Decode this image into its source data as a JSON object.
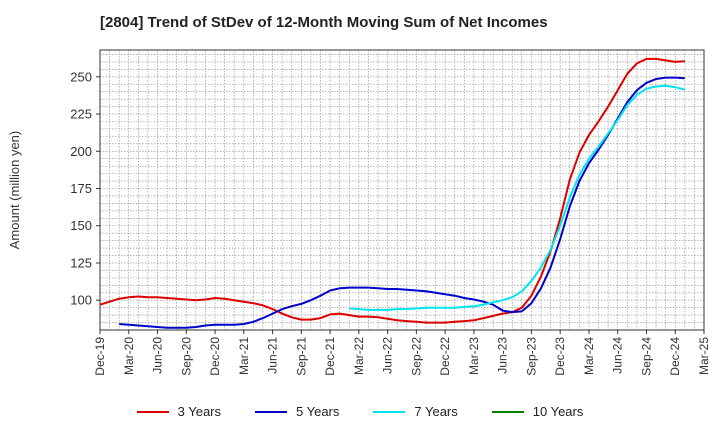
{
  "title": "[2804]  Trend of StDev of 12-Month Moving Sum of Net Incomes",
  "chart_data": {
    "type": "line",
    "title": "[2804]  Trend of StDev of 12-Month Moving Sum of Net Incomes",
    "xlabel": "",
    "ylabel": "Amount (million yen)",
    "x_range": [
      "2019-12",
      "2025-03"
    ],
    "ylim": [
      80,
      268
    ],
    "y_ticks": [
      100,
      125,
      150,
      175,
      200,
      225,
      250
    ],
    "x_ticks": [
      "Dec-19",
      "Mar-20",
      "Jun-20",
      "Sep-20",
      "Dec-20",
      "Mar-21",
      "Jun-21",
      "Sep-21",
      "Dec-21",
      "Mar-22",
      "Jun-22",
      "Sep-22",
      "Dec-22",
      "Mar-23",
      "Jun-23",
      "Sep-23",
      "Dec-23",
      "Mar-24",
      "Jun-24",
      "Sep-24",
      "Dec-24",
      "Mar-25"
    ],
    "grid": true,
    "legend_position": "bottom",
    "series": [
      {
        "name": "3 Years",
        "color": "#dd0000",
        "points": [
          [
            "2019-12",
            97
          ],
          [
            "2020-01",
            99
          ],
          [
            "2020-02",
            101
          ],
          [
            "2020-03",
            102
          ],
          [
            "2020-04",
            102.5
          ],
          [
            "2020-05",
            102
          ],
          [
            "2020-06",
            102
          ],
          [
            "2020-07",
            101.5
          ],
          [
            "2020-08",
            101
          ],
          [
            "2020-09",
            100.5
          ],
          [
            "2020-10",
            100
          ],
          [
            "2020-11",
            100.5
          ],
          [
            "2020-12",
            101.5
          ],
          [
            "2021-01",
            101
          ],
          [
            "2021-02",
            100
          ],
          [
            "2021-03",
            99
          ],
          [
            "2021-04",
            98
          ],
          [
            "2021-05",
            96.5
          ],
          [
            "2021-06",
            94
          ],
          [
            "2021-07",
            91
          ],
          [
            "2021-08",
            88.5
          ],
          [
            "2021-09",
            87
          ],
          [
            "2021-10",
            87
          ],
          [
            "2021-11",
            88
          ],
          [
            "2021-12",
            90.5
          ],
          [
            "2022-01",
            91
          ],
          [
            "2022-02",
            90
          ],
          [
            "2022-03",
            89
          ],
          [
            "2022-04",
            89
          ],
          [
            "2022-05",
            88.5
          ],
          [
            "2022-06",
            87.5
          ],
          [
            "2022-07",
            86.5
          ],
          [
            "2022-08",
            86
          ],
          [
            "2022-09",
            85.5
          ],
          [
            "2022-10",
            85
          ],
          [
            "2022-11",
            85
          ],
          [
            "2022-12",
            85
          ],
          [
            "2023-01",
            85.5
          ],
          [
            "2023-02",
            86
          ],
          [
            "2023-03",
            86.5
          ],
          [
            "2023-04",
            88
          ],
          [
            "2023-05",
            89.5
          ],
          [
            "2023-06",
            91
          ],
          [
            "2023-07",
            92
          ],
          [
            "2023-08",
            95
          ],
          [
            "2023-09",
            103
          ],
          [
            "2023-10",
            116
          ],
          [
            "2023-11",
            133
          ],
          [
            "2023-12",
            155
          ],
          [
            "2024-01",
            181
          ],
          [
            "2024-02",
            199
          ],
          [
            "2024-03",
            211
          ],
          [
            "2024-04",
            220
          ],
          [
            "2024-05",
            230
          ],
          [
            "2024-06",
            241
          ],
          [
            "2024-07",
            252
          ],
          [
            "2024-08",
            259
          ],
          [
            "2024-09",
            262
          ],
          [
            "2024-10",
            262
          ],
          [
            "2024-11",
            261
          ],
          [
            "2024-12",
            260
          ],
          [
            "2025-01",
            260.5
          ]
        ]
      },
      {
        "name": "5 Years",
        "color": "#0000cc",
        "points": [
          [
            "2020-02",
            84
          ],
          [
            "2020-03",
            83.5
          ],
          [
            "2020-04",
            83
          ],
          [
            "2020-05",
            82.5
          ],
          [
            "2020-06",
            82
          ],
          [
            "2020-07",
            81.5
          ],
          [
            "2020-08",
            81.5
          ],
          [
            "2020-09",
            81.5
          ],
          [
            "2020-10",
            82
          ],
          [
            "2020-11",
            83
          ],
          [
            "2020-12",
            83.5
          ],
          [
            "2021-01",
            83.5
          ],
          [
            "2021-02",
            83.5
          ],
          [
            "2021-03",
            84
          ],
          [
            "2021-04",
            85.5
          ],
          [
            "2021-05",
            88
          ],
          [
            "2021-06",
            91
          ],
          [
            "2021-07",
            94
          ],
          [
            "2021-08",
            96
          ],
          [
            "2021-09",
            97.5
          ],
          [
            "2021-10",
            100
          ],
          [
            "2021-11",
            103
          ],
          [
            "2021-12",
            106.5
          ],
          [
            "2022-01",
            108
          ],
          [
            "2022-02",
            108.5
          ],
          [
            "2022-03",
            108.5
          ],
          [
            "2022-04",
            108.5
          ],
          [
            "2022-05",
            108
          ],
          [
            "2022-06",
            107.5
          ],
          [
            "2022-07",
            107.5
          ],
          [
            "2022-08",
            107
          ],
          [
            "2022-09",
            106.5
          ],
          [
            "2022-10",
            106
          ],
          [
            "2022-11",
            105
          ],
          [
            "2022-12",
            104
          ],
          [
            "2023-01",
            103
          ],
          [
            "2023-02",
            101.5
          ],
          [
            "2023-03",
            100.5
          ],
          [
            "2023-04",
            99
          ],
          [
            "2023-05",
            97
          ],
          [
            "2023-06",
            93
          ],
          [
            "2023-07",
            92
          ],
          [
            "2023-08",
            92.5
          ],
          [
            "2023-09",
            98
          ],
          [
            "2023-10",
            108
          ],
          [
            "2023-11",
            122
          ],
          [
            "2023-12",
            141
          ],
          [
            "2024-01",
            163
          ],
          [
            "2024-02",
            180
          ],
          [
            "2024-03",
            192
          ],
          [
            "2024-04",
            201
          ],
          [
            "2024-05",
            211
          ],
          [
            "2024-06",
            222
          ],
          [
            "2024-07",
            233
          ],
          [
            "2024-08",
            241
          ],
          [
            "2024-09",
            246
          ],
          [
            "2024-10",
            248.5
          ],
          [
            "2024-11",
            249.5
          ],
          [
            "2024-12",
            249.5
          ],
          [
            "2025-01",
            249
          ]
        ]
      },
      {
        "name": "7 Years",
        "color": "#00e5ee",
        "points": [
          [
            "2022-02",
            94.5
          ],
          [
            "2022-03",
            94
          ],
          [
            "2022-04",
            93.5
          ],
          [
            "2022-05",
            93.5
          ],
          [
            "2022-06",
            93.5
          ],
          [
            "2022-07",
            94
          ],
          [
            "2022-08",
            94
          ],
          [
            "2022-09",
            94.5
          ],
          [
            "2022-10",
            95
          ],
          [
            "2022-11",
            95
          ],
          [
            "2022-12",
            95
          ],
          [
            "2023-01",
            95
          ],
          [
            "2023-02",
            95.5
          ],
          [
            "2023-03",
            96
          ],
          [
            "2023-04",
            97
          ],
          [
            "2023-05",
            98.5
          ],
          [
            "2023-06",
            100
          ],
          [
            "2023-07",
            102
          ],
          [
            "2023-08",
            106
          ],
          [
            "2023-09",
            113
          ],
          [
            "2023-10",
            122
          ],
          [
            "2023-11",
            134
          ],
          [
            "2023-12",
            150
          ],
          [
            "2024-01",
            169
          ],
          [
            "2024-02",
            184
          ],
          [
            "2024-03",
            195
          ],
          [
            "2024-04",
            203
          ],
          [
            "2024-05",
            212
          ],
          [
            "2024-06",
            221
          ],
          [
            "2024-07",
            231
          ],
          [
            "2024-08",
            238
          ],
          [
            "2024-09",
            242
          ],
          [
            "2024-10",
            243.5
          ],
          [
            "2024-11",
            244
          ],
          [
            "2024-12",
            243
          ],
          [
            "2025-01",
            241.5
          ]
        ]
      },
      {
        "name": "10 Years",
        "color": "#008000",
        "points": []
      }
    ]
  }
}
